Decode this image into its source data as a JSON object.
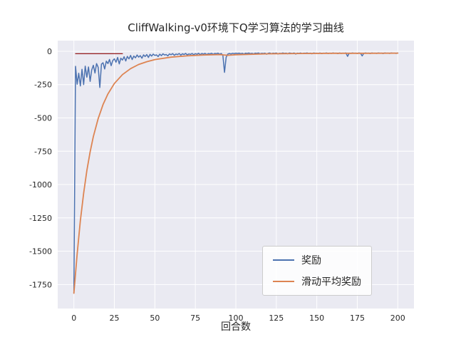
{
  "chart_data": {
    "type": "line",
    "title": "CliffWalking-v0环境下Q学习算法的学习曲线",
    "xlabel": "回合数",
    "ylabel": "",
    "xlim": [
      -10,
      210
    ],
    "ylim": [
      -1930,
      80
    ],
    "x_ticks": [
      0,
      25,
      50,
      75,
      100,
      125,
      150,
      175,
      200
    ],
    "y_ticks": [
      0,
      -250,
      -500,
      -750,
      -1000,
      -1250,
      -1500,
      -1750
    ],
    "grid": true,
    "grid_color": "#ffffff",
    "background": "#eaeaf2",
    "legend_position": "lower right",
    "series": [
      {
        "name": "奖励",
        "color": "#4c72b0",
        "width": 1.5,
        "in_legend": true,
        "x_start": 0,
        "x_step": 1,
        "values": [
          -1815,
          -113,
          -247,
          -165,
          -260,
          -135,
          -250,
          -112,
          -195,
          -118,
          -226,
          -140,
          -105,
          -163,
          -92,
          -120,
          -272,
          -96,
          -86,
          -133,
          -74,
          -92,
          -61,
          -108,
          -69,
          -57,
          -82,
          -46,
          -95,
          -52,
          -66,
          -41,
          -73,
          -38,
          -57,
          -31,
          -62,
          -36,
          -49,
          -28,
          -44,
          -33,
          -52,
          -27,
          -39,
          -25,
          -46,
          -23,
          -36,
          -21,
          -31,
          -27,
          -40,
          -22,
          -33,
          -19,
          -28,
          -24,
          -35,
          -20,
          -26,
          -18,
          -30,
          -21,
          -25,
          -17,
          -29,
          -19,
          -24,
          -16,
          -27,
          -20,
          -23,
          -17,
          -26,
          -18,
          -22,
          -15,
          -25,
          -17,
          -21,
          -16,
          -24,
          -18,
          -20,
          -15,
          -23,
          -16,
          -19,
          -14,
          -22,
          -17,
          -30,
          -158,
          -45,
          -21,
          -17,
          -20,
          -15,
          -18,
          -14,
          -17,
          -14,
          -19,
          -15,
          -21,
          -14,
          -17,
          -13,
          -18,
          -15,
          -20,
          -14,
          -16,
          -13,
          -19,
          -15,
          -17,
          -14,
          -22,
          -15,
          -13,
          -18,
          -14,
          -16,
          -13,
          -20,
          -15,
          -17,
          -13,
          -16,
          -14,
          -19,
          -13,
          -15,
          -17,
          -13,
          -21,
          -14,
          -16,
          -13,
          -18,
          -14,
          -15,
          -13,
          -17,
          -14,
          -19,
          -13,
          -15,
          -14,
          -16,
          -13,
          -18,
          -14,
          -15,
          -13,
          -17,
          -14,
          -16,
          -13,
          -15,
          -14,
          -18,
          -13,
          -16,
          -14,
          -15,
          -13,
          -38,
          -14,
          -16,
          -13,
          -15,
          -14,
          -17,
          -13,
          -15,
          -35,
          -16,
          -13,
          -15,
          -14,
          -17,
          -13,
          -15,
          -14,
          -16,
          -13,
          -15,
          -14,
          -17,
          -13,
          -15,
          -14,
          -16,
          -13,
          -15,
          -14,
          -16,
          -13
        ]
      },
      {
        "name": "滑动平均奖励",
        "color": "#dd8452",
        "width": 1.8,
        "in_legend": true,
        "x": [
          0,
          2,
          4,
          6,
          8,
          10,
          12,
          15,
          18,
          21,
          25,
          30,
          35,
          40,
          45,
          50,
          60,
          70,
          80,
          90,
          95,
          100,
          120,
          140,
          160,
          180,
          200
        ],
        "values": [
          -1815,
          -1520,
          -1270,
          -1065,
          -895,
          -755,
          -640,
          -505,
          -400,
          -320,
          -242,
          -175,
          -130,
          -99,
          -78,
          -62,
          -44,
          -34,
          -28,
          -25,
          -30,
          -26,
          -19,
          -17,
          -15,
          -15,
          -14
        ]
      },
      {
        "name": "reference-line",
        "color": "#8b0000",
        "width": 1.2,
        "in_legend": false,
        "x": [
          1,
          30
        ],
        "values": [
          -18,
          -18
        ]
      }
    ]
  }
}
